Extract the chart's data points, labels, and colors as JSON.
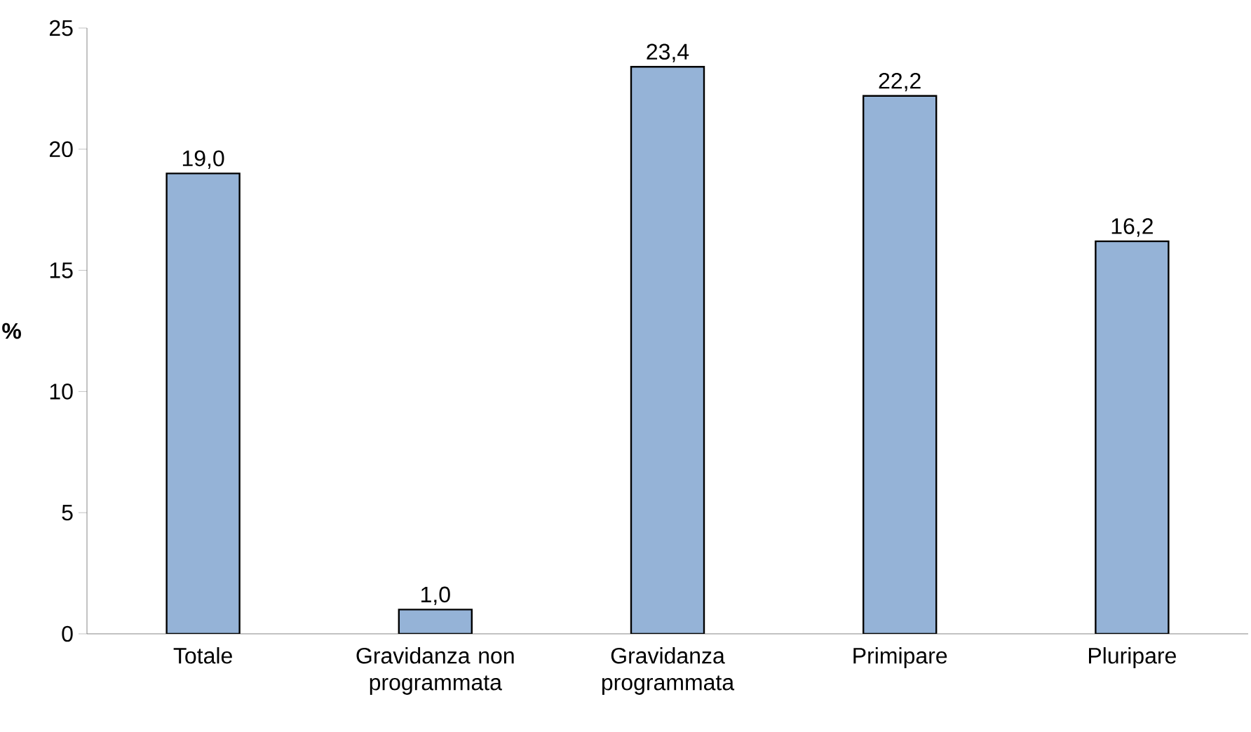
{
  "chart_data": {
    "type": "bar",
    "ylabel": "%",
    "categories": [
      "Totale",
      "Gravidanza non programmata",
      "Gravidanza programmata",
      "Primipare",
      "Pluripare"
    ],
    "values": [
      19.0,
      1.0,
      23.4,
      22.2,
      16.2
    ],
    "value_labels": [
      "19,0",
      "1,0",
      "23,4",
      "22,2",
      "16,2"
    ],
    "color": "#95b3d7",
    "ylim": [
      0,
      25
    ],
    "yticks": [
      0,
      5,
      10,
      15,
      20,
      25
    ],
    "grid": false
  }
}
